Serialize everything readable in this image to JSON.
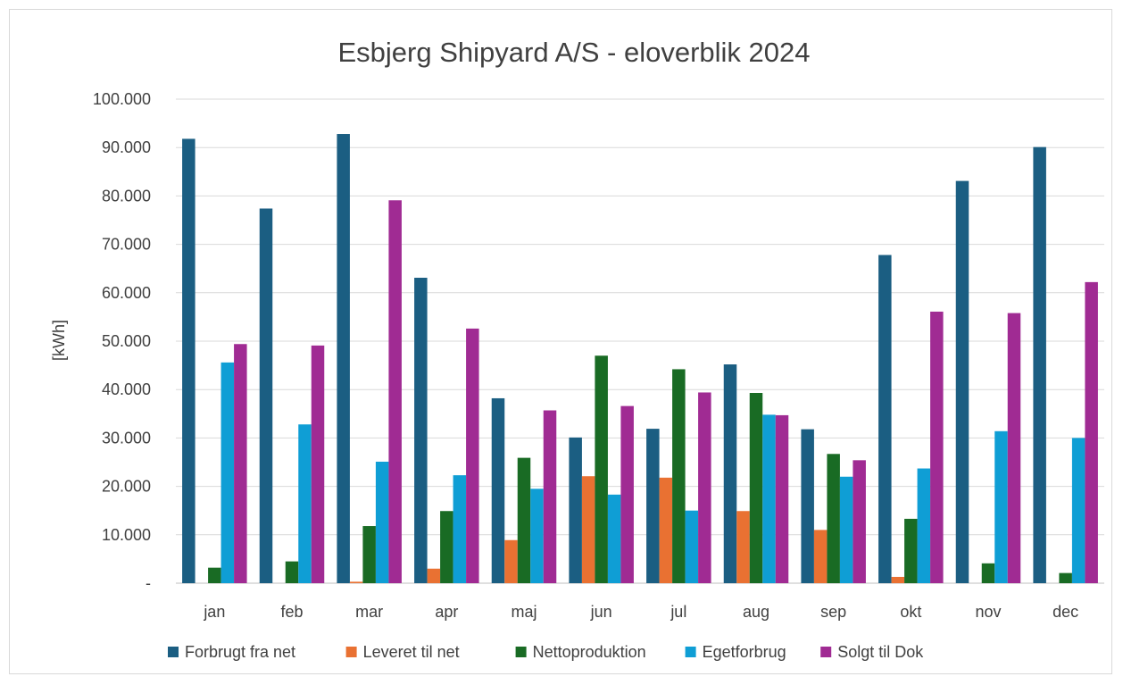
{
  "chart_data": {
    "type": "bar",
    "title": "Esbjerg Shipyard A/S - eloverblik 2024",
    "ylabel": "[kWh]",
    "xlabel": "",
    "ylim": [
      0,
      100000
    ],
    "yticks": [
      {
        "value": 0,
        "label": "-"
      },
      {
        "value": 10000,
        "label": "10.000"
      },
      {
        "value": 20000,
        "label": "20.000"
      },
      {
        "value": 30000,
        "label": "30.000"
      },
      {
        "value": 40000,
        "label": "40.000"
      },
      {
        "value": 50000,
        "label": "50.000"
      },
      {
        "value": 60000,
        "label": "60.000"
      },
      {
        "value": 70000,
        "label": "70.000"
      },
      {
        "value": 80000,
        "label": "80.000"
      },
      {
        "value": 90000,
        "label": "90.000"
      },
      {
        "value": 100000,
        "label": "100.000"
      }
    ],
    "grid": true,
    "legend_position": "bottom",
    "categories": [
      "jan",
      "feb",
      "mar",
      "apr",
      "maj",
      "jun",
      "jul",
      "aug",
      "sep",
      "okt",
      "nov",
      "dec"
    ],
    "series": [
      {
        "name": "Forbrugt fra net",
        "color": "#1b5e82",
        "values": [
          91800,
          77400,
          92800,
          63100,
          38200,
          30100,
          31900,
          45200,
          31800,
          67800,
          83100,
          90100
        ]
      },
      {
        "name": "Leveret til net",
        "color": "#e97132",
        "values": [
          0,
          0,
          300,
          3000,
          8900,
          22100,
          21800,
          14900,
          11000,
          1300,
          0,
          0
        ]
      },
      {
        "name": "Nettoproduktion",
        "color": "#196b24",
        "values": [
          3200,
          4500,
          11800,
          14900,
          25900,
          47000,
          44200,
          39300,
          26700,
          13300,
          4100,
          2100
        ]
      },
      {
        "name": "Egetforbrug",
        "color": "#0f9ed5",
        "values": [
          45600,
          32800,
          25100,
          22300,
          19500,
          18300,
          15000,
          34800,
          22000,
          23700,
          31400,
          30000
        ]
      },
      {
        "name": "Solgt til Dok",
        "color": "#a02b93",
        "values": [
          49400,
          49100,
          79100,
          52600,
          35700,
          36600,
          39400,
          34700,
          25400,
          56100,
          55800,
          62200
        ]
      }
    ]
  }
}
